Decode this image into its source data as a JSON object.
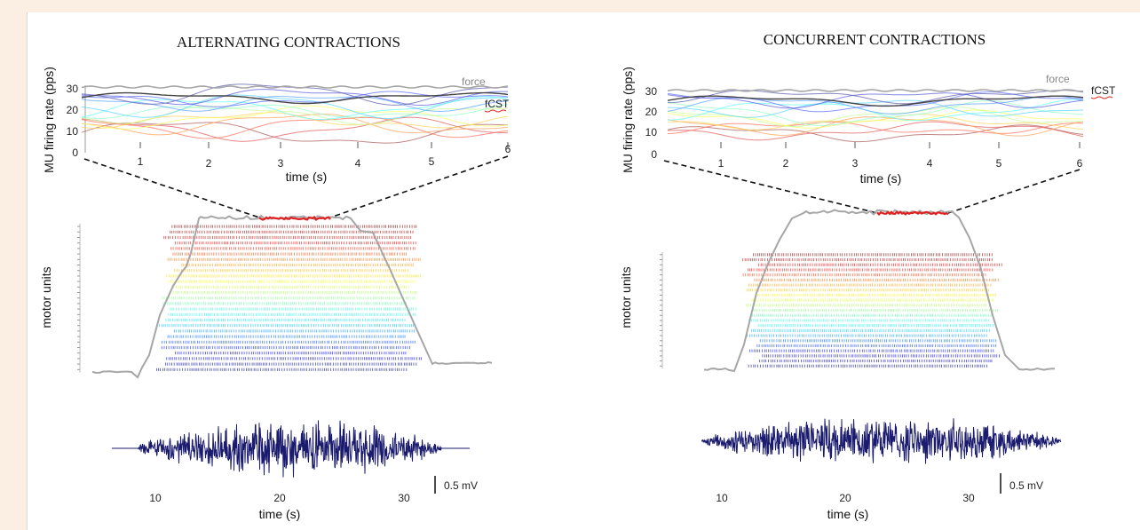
{
  "panels": [
    {
      "title": "ALTERNATING CONTRACTIONS",
      "fr_ylabel": "MU firing rate (pps)",
      "fr_xlabel": "time (s)",
      "fr_yticks": [
        "30",
        "20",
        "10",
        "0"
      ],
      "fr_xticks": [
        "1",
        "2",
        "3",
        "4",
        "5",
        "6"
      ],
      "label_force": "force",
      "label_fcst": "fCST",
      "raster_ylabel": "motor units",
      "mu_count": 27,
      "emg_scale": "0.5 mV",
      "emg_xticks": [
        "10",
        "20",
        "30"
      ],
      "emg_xlabel": "time (s)"
    },
    {
      "title": "CONCURRENT CONTRACTIONS",
      "fr_ylabel": "MU firing rate (pps)",
      "fr_xlabel": "time (s)",
      "fr_yticks": [
        "30",
        "20",
        "10",
        "0"
      ],
      "fr_xticks": [
        "1",
        "2",
        "3",
        "4",
        "5",
        "6"
      ],
      "label_force": "force",
      "label_fcst": "fCST",
      "raster_ylabel": "motor units",
      "mu_count": 23,
      "emg_scale": "0.5 mV",
      "emg_xticks": [
        "10",
        "20",
        "30"
      ],
      "emg_xlabel": "time (s)"
    }
  ],
  "colors": {
    "force": "#a6a6a6",
    "fcst": "#444444",
    "highlight": "#e02020",
    "emg": "#1a1a6e",
    "page_background": "#fbeee2"
  },
  "chart_data": [
    {
      "type": "line",
      "title": "ALTERNATING CONTRACTIONS",
      "xlabel": "time (s)",
      "ylabel": "MU firing rate (pps)",
      "xlim": [
        0,
        6
      ],
      "ylim": [
        0,
        30
      ],
      "series": [
        {
          "name": "force",
          "approx_level": 29
        },
        {
          "name": "fCST",
          "approx_level": 25
        }
      ],
      "mu_firing_rate_range": [
        8,
        28
      ]
    },
    {
      "type": "scatter",
      "ylabel": "motor units",
      "xlabel": "time (s)",
      "mu_count": 27,
      "xlim": [
        5,
        35
      ]
    },
    {
      "type": "line",
      "title": "CONCURRENT CONTRACTIONS",
      "xlabel": "time (s)",
      "ylabel": "MU firing rate (pps)",
      "xlim": [
        0,
        6
      ],
      "ylim": [
        0,
        30
      ],
      "series": [
        {
          "name": "force",
          "approx_level": 29
        },
        {
          "name": "fCST",
          "approx_level": 24
        }
      ],
      "mu_firing_rate_range": [
        8,
        28
      ]
    },
    {
      "type": "scatter",
      "ylabel": "motor units",
      "xlabel": "time (s)",
      "mu_count": 23,
      "xlim": [
        5,
        35
      ]
    }
  ]
}
